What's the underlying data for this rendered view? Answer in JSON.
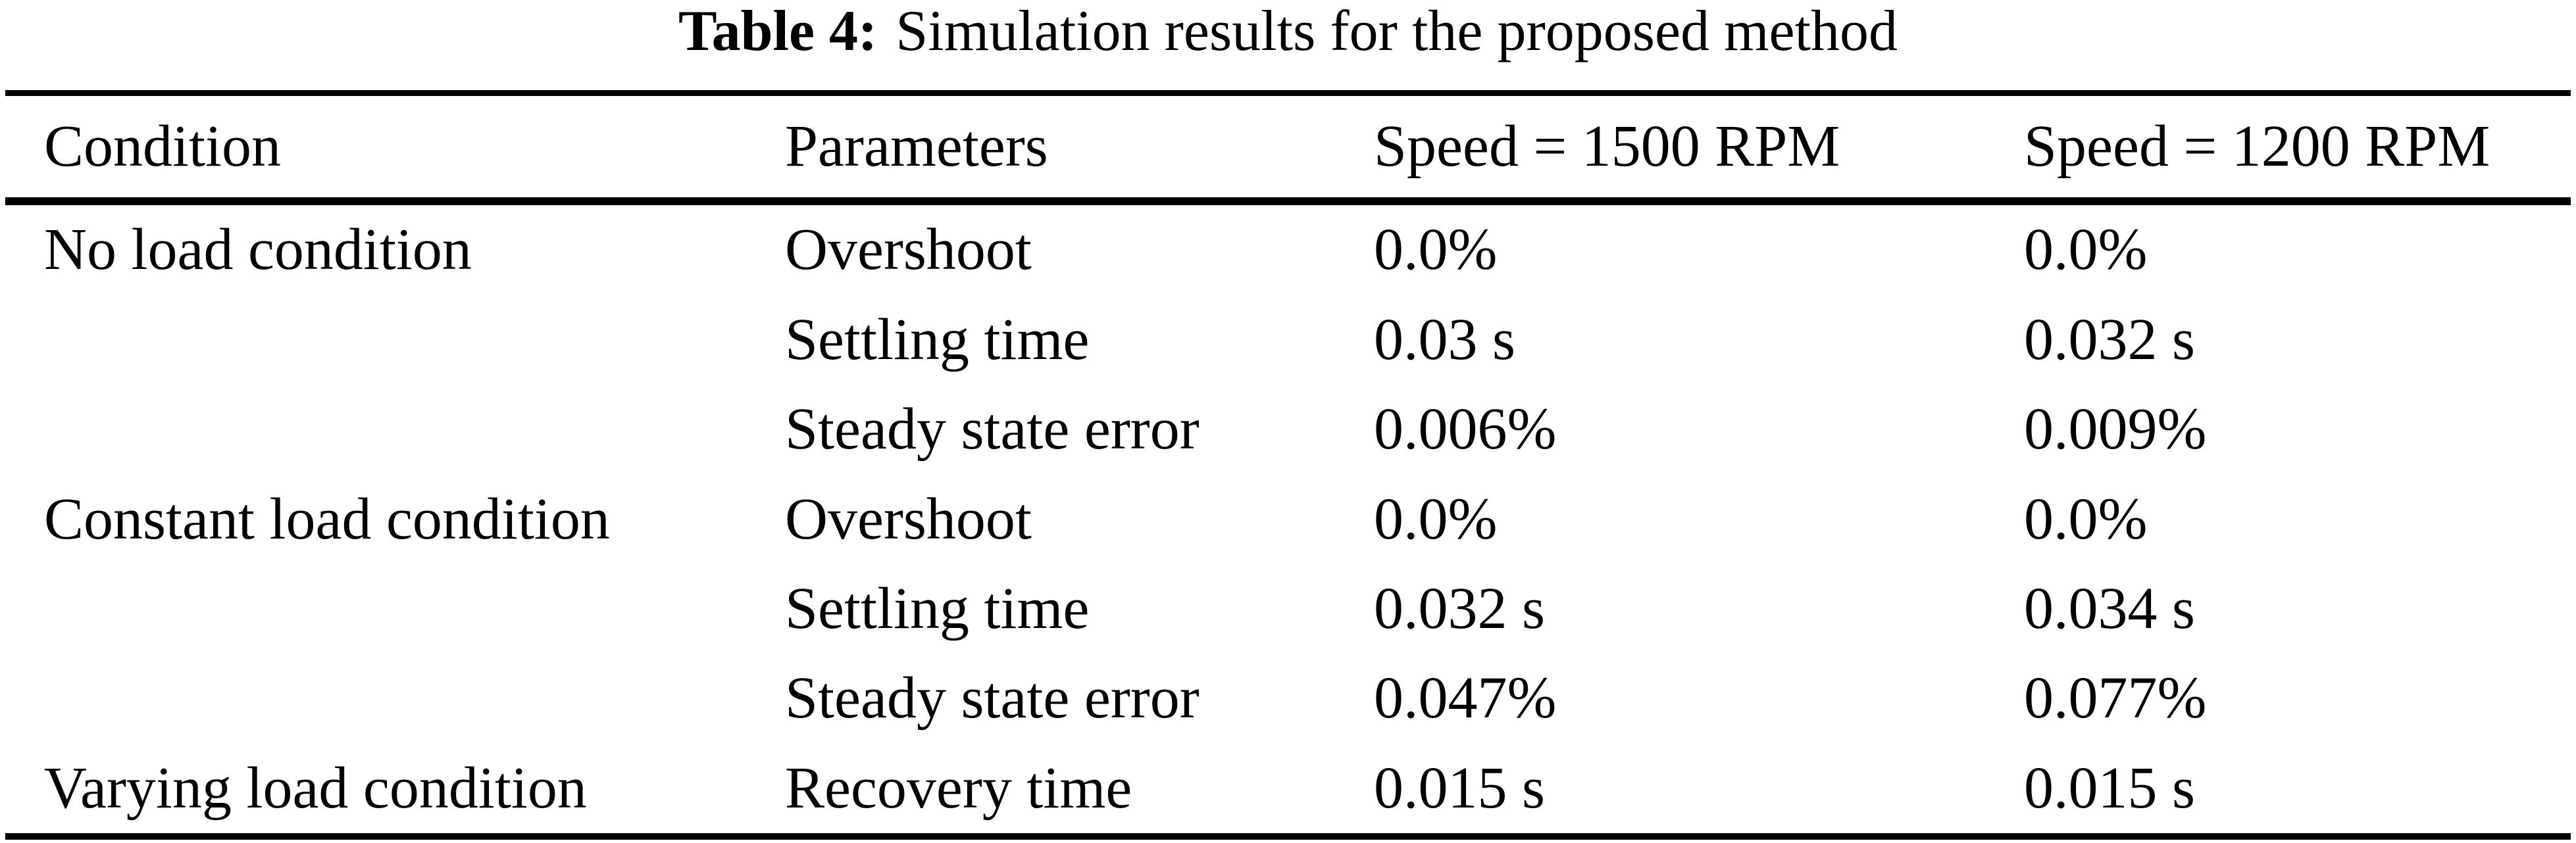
{
  "caption": {
    "label": "Table 4:",
    "text": "Simulation results for the proposed method"
  },
  "table": {
    "headers": [
      "Condition",
      "Parameters",
      "Speed = 1500 RPM",
      "Speed = 1200 RPM"
    ],
    "rows": [
      [
        "No load condition",
        "Overshoot",
        "0.0%",
        "0.0%"
      ],
      [
        "",
        "Settling time",
        "0.03 s",
        "0.032 s"
      ],
      [
        "",
        "Steady state error",
        "0.006%",
        "0.009%"
      ],
      [
        "Constant load condition",
        "Overshoot",
        "0.0%",
        "0.0%"
      ],
      [
        "",
        "Settling time",
        "0.032 s",
        "0.034 s"
      ],
      [
        "",
        "Steady state error",
        "0.047%",
        "0.077%"
      ],
      [
        "Varying load condition",
        "Recovery time",
        "0.015 s",
        "0.015 s"
      ]
    ]
  },
  "colors": {
    "text": "#000000",
    "background": "#ffffff",
    "rule": "#000000"
  }
}
